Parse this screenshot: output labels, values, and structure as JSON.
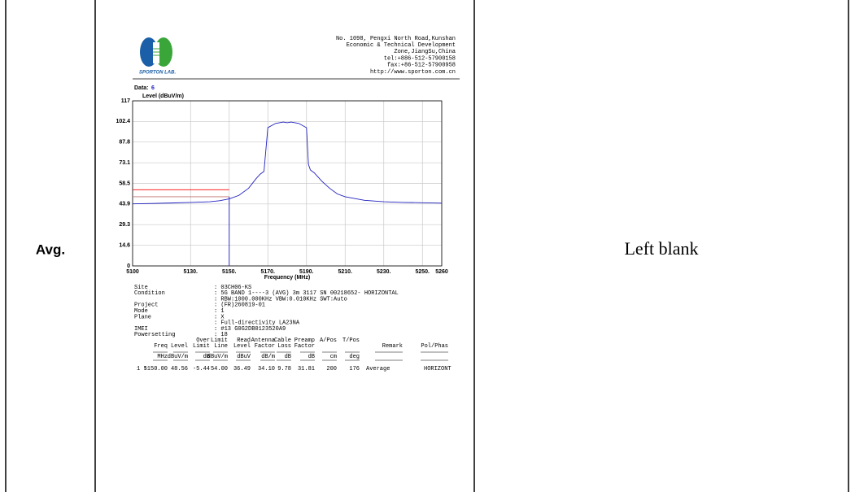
{
  "document": {
    "row_label": "Avg.",
    "note": "Left blank",
    "header": {
      "logo_text": "SPORTON LAB.",
      "address": [
        "No. 1098, Pengxi North Road,Kunshan",
        "Economic & Technical Development",
        "Zone,JiangSu,China",
        "tel:+886-512-57900158",
        "fax:+86-512-57900958",
        "http://www.sporton.com.cn"
      ]
    },
    "data_label": "Data:",
    "data_number": "6",
    "info": [
      {
        "label": "Site",
        "value": ": 03CH06-KS"
      },
      {
        "label": "Condition",
        "value": ": 5G BAND 1----3 (AVG) 3m 3117 SN 00218652- HORIZONTAL"
      },
      {
        "value": ": RBW:1000.000KHz VBW:0.010KHz SWT:Auto"
      },
      {
        "label": "Project",
        "value": ": (FR)260819-01"
      },
      {
        "label": "Mode",
        "value": ": 1"
      },
      {
        "label": "Plane",
        "value": ": X"
      },
      {
        "value": ": Full-directivity LA23NA"
      },
      {
        "label": "IMEI",
        "value": ": #13 G0G2DB0123520A9"
      },
      {
        "label": "Powersetting",
        "value": ": 18"
      }
    ],
    "table": {
      "columns": [
        {
          "lines": [
            "Freq"
          ],
          "unit": "MHz"
        },
        {
          "lines": [
            "Level"
          ],
          "unit": "dBuV/m"
        },
        {
          "lines": [
            "Over",
            "Limit"
          ],
          "unit": "dB"
        },
        {
          "lines": [
            "Limit",
            "Line"
          ],
          "unit": "dBuV/m"
        },
        {
          "lines": [
            "Read",
            "Level"
          ],
          "unit": "dBuV"
        },
        {
          "lines": [
            "Antenna",
            "Factor"
          ],
          "unit": "dB/m"
        },
        {
          "lines": [
            "Cable",
            "Loss"
          ],
          "unit": "dB"
        },
        {
          "lines": [
            "Preamp",
            "Factor"
          ],
          "unit": "dB"
        },
        {
          "lines": [
            "A/Pos"
          ],
          "unit": "cm"
        },
        {
          "lines": [
            "T/Pos"
          ],
          "unit": "deg"
        },
        {
          "lines": [
            "Remark"
          ]
        },
        {
          "lines": [
            "Pol/Phas"
          ]
        }
      ],
      "row": {
        "label": "1 !",
        "cells": [
          "5150.00",
          "48.56",
          "-5.44",
          "54.00",
          "36.49",
          "34.10",
          "9.78",
          "31.81",
          "200",
          "176",
          "Average",
          "HORIZONT"
        ]
      }
    }
  },
  "chart_data": {
    "type": "line",
    "y_label": "Level (dBuV/m)",
    "x_label": "Frequency (MHz)",
    "xlim": [
      5100,
      5260
    ],
    "ylim": [
      0,
      117
    ],
    "xticks": [
      5100,
      {
        "value": 5130,
        "label": "5130."
      },
      {
        "value": 5150,
        "label": "5150."
      },
      {
        "value": 5170,
        "label": "5170."
      },
      {
        "value": 5190,
        "label": "5190."
      },
      {
        "value": 5210,
        "label": "5210."
      },
      {
        "value": 5230,
        "label": "5230."
      },
      {
        "value": 5250,
        "label": "5250."
      },
      5260
    ],
    "yticks": [
      0,
      14.6,
      29.3,
      43.9,
      58.5,
      73.1,
      87.8,
      102.4,
      117
    ],
    "grid": true,
    "series": [
      {
        "color": "#2020c0",
        "x": [
          5100,
          5110,
          5120,
          5130,
          5140,
          5145,
          5150,
          5155,
          5160,
          5164,
          5166,
          5168,
          5170,
          5174,
          5178,
          5180,
          5182,
          5186,
          5190,
          5191,
          5192,
          5194,
          5198,
          5202,
          5206,
          5210,
          5220,
          5230,
          5240,
          5250,
          5260
        ],
        "values": [
          44.0,
          44.3,
          44.6,
          45.0,
          45.5,
          46.2,
          47.5,
          50.0,
          55.0,
          62,
          65,
          67,
          98,
          101,
          102,
          101.5,
          102,
          101,
          98,
          72,
          68,
          66,
          60,
          55,
          51,
          49,
          46.5,
          45.5,
          45,
          44.8,
          44.5
        ]
      }
    ],
    "reference_lines": [
      {
        "value": 54,
        "x": [
          5100,
          5150
        ],
        "color": "#ff0000"
      },
      {
        "value": 49,
        "x": [
          5100,
          5150
        ],
        "color": "#c07070"
      }
    ],
    "marker_x": 5150,
    "marker_color": "#2020c0"
  }
}
